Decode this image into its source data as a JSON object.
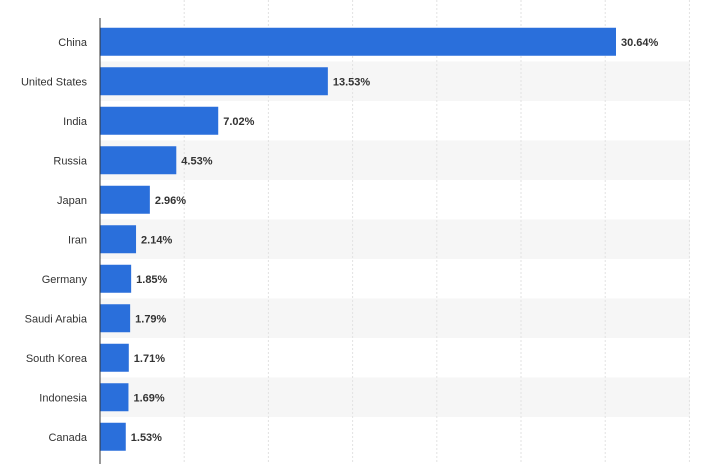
{
  "chart_data": {
    "type": "bar",
    "orientation": "horizontal",
    "title": "",
    "xlabel": "",
    "ylabel": "",
    "xlim": [
      0,
      35
    ],
    "grid": true,
    "value_suffix": "%",
    "categories": [
      "China",
      "United States",
      "India",
      "Russia",
      "Japan",
      "Iran",
      "Germany",
      "Saudi Arabia",
      "South Korea",
      "Indonesia",
      "Canada"
    ],
    "values": [
      30.64,
      13.53,
      7.02,
      4.53,
      2.96,
      2.14,
      1.85,
      1.79,
      1.71,
      1.69,
      1.53
    ],
    "value_labels": [
      "30.64%",
      "13.53%",
      "7.02%",
      "4.53%",
      "2.96%",
      "2.14%",
      "1.85%",
      "1.79%",
      "1.71%",
      "1.69%",
      "1.53%"
    ]
  },
  "colors": {
    "bar": "#2a6fdb",
    "band": "#f6f6f6",
    "grid": "#e2e2e2",
    "axis": "#333333",
    "text": "#333333"
  }
}
